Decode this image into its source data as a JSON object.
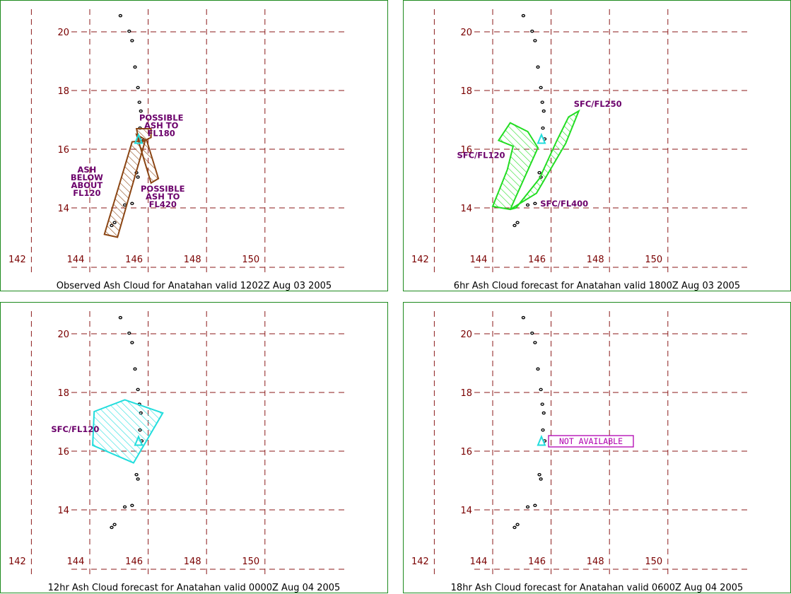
{
  "panels": [
    {
      "title": "Observed Ash Cloud for Anatahan valid 1202Z Aug 03 2005",
      "color": "#8b4513",
      "labels": [
        {
          "lines": [
            "POSSIBLE",
            "ASH TO",
            "FL180"
          ],
          "lon": 146.45,
          "lat": 16.98
        },
        {
          "lines": [
            "ASH",
            "BELOW",
            "ABOUT",
            "FL120"
          ],
          "lon": 143.9,
          "lat": 15.2
        },
        {
          "lines": [
            "POSSIBLE",
            "ASH TO",
            "FL420"
          ],
          "lon": 146.5,
          "lat": 14.55
        }
      ],
      "not_available": ""
    },
    {
      "title": "6hr Ash Cloud forecast for Anatahan valid 1800Z Aug 03 2005",
      "color": "#22dd22",
      "labels": [
        {
          "lines": [
            "SFC/FL250"
          ],
          "lon": 147.6,
          "lat": 17.45
        },
        {
          "lines": [
            "SFC/FL120"
          ],
          "lon": 143.6,
          "lat": 15.7
        },
        {
          "lines": [
            "SFC/FL400"
          ],
          "lon": 146.45,
          "lat": 14.05
        }
      ],
      "not_available": ""
    },
    {
      "title": "12hr Ash Cloud forecast for Anatahan valid 0000Z Aug 04 2005",
      "color": "#22dddd",
      "labels": [
        {
          "lines": [
            "SFC/FL120"
          ],
          "lon": 143.5,
          "lat": 16.65
        }
      ],
      "not_available": ""
    },
    {
      "title": "18hr Ash Cloud forecast for Anatahan valid 0600Z Aug 04 2005",
      "color": "#b000b0",
      "labels": [],
      "not_available": "NOT AVAILABLE"
    }
  ],
  "axes": {
    "lon_ticks": [
      142,
      144,
      146,
      148,
      150
    ],
    "lat_ticks": [
      14,
      16,
      18,
      20
    ],
    "tick_color": "#7a0000",
    "grid_color": "#8b1a1a"
  },
  "volcano": {
    "name_icon": "volcano-marker-icon",
    "lon": 145.67,
    "lat": 16.35,
    "color": "#22dddd"
  }
}
